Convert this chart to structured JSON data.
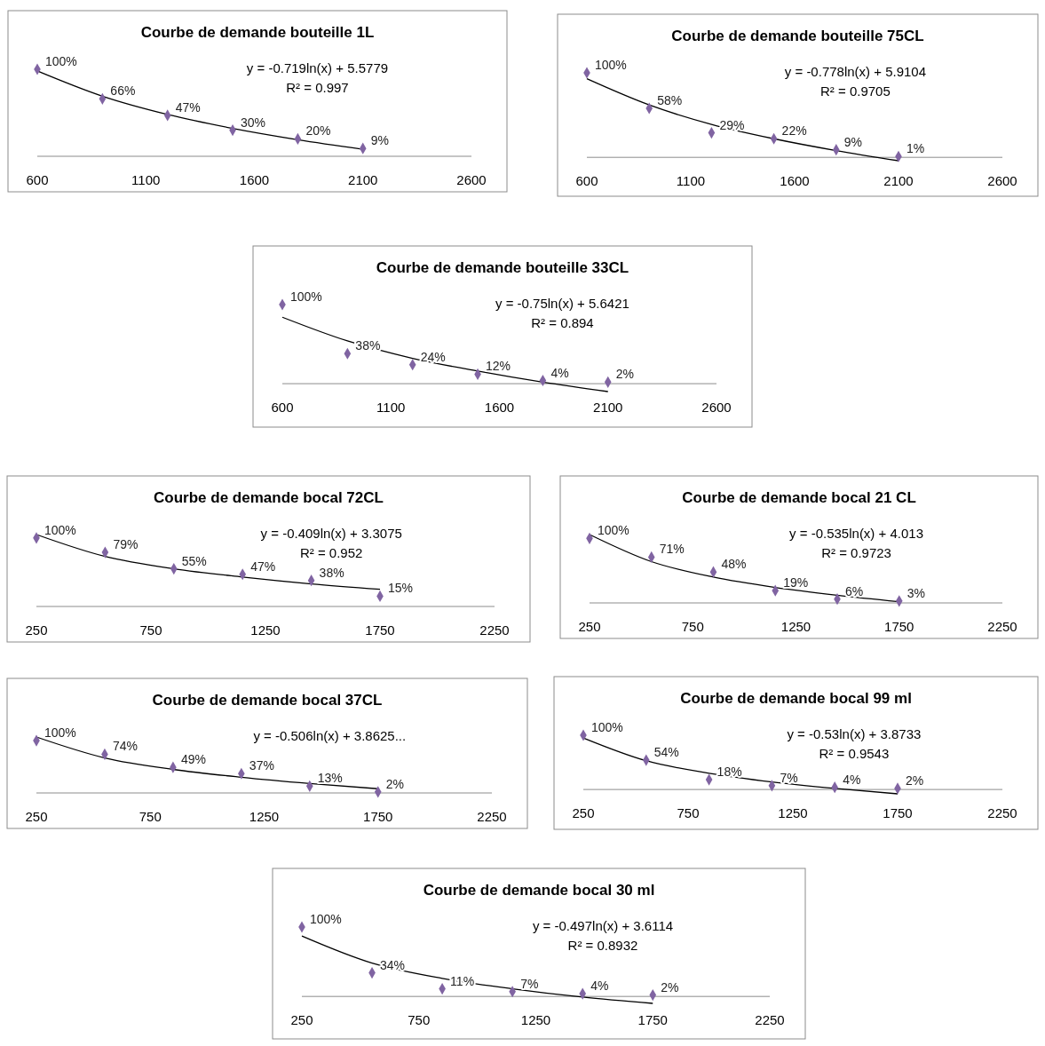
{
  "chart_data": [
    {
      "type": "scatter",
      "title": "Courbe de demande bouteille 1L",
      "x": [
        600,
        900,
        1200,
        1500,
        1800,
        2100
      ],
      "xlim": [
        600,
        2600
      ],
      "xticks": [
        600,
        1100,
        1600,
        2100,
        2600
      ],
      "tick_labels": "x",
      "annotations": [
        "y = -0.719ln(x) + 5.5779",
        "R² = 0.997"
      ],
      "series": [
        {
          "color": "#8064a2",
          "marker": "diamond",
          "values": [
            100,
            66,
            47,
            30,
            20,
            9
          ],
          "value_labels": [
            "100%",
            "66%",
            "47%",
            "30%",
            "20%",
            "9%"
          ]
        },
        {
          "type": "line",
          "color": "#000000",
          "x": [
            600,
            900,
            1200,
            1500,
            1800,
            2100
          ],
          "values": [
            98,
            69,
            48,
            32,
            19,
            8
          ]
        }
      ]
    },
    {
      "type": "scatter",
      "title": "Courbe de demande bouteille 75CL",
      "x": [
        600,
        900,
        1200,
        1500,
        1800,
        2100
      ],
      "xlim": [
        600,
        2600
      ],
      "xticks": [
        600,
        1100,
        1600,
        2100,
        2600
      ],
      "tick_labels": "x",
      "annotations": [
        "y = -0.778ln(x) + 5.9104",
        "R² = 0.9705"
      ],
      "series": [
        {
          "color": "#8064a2",
          "marker": "diamond",
          "values": [
            100,
            58,
            29,
            22,
            9,
            1
          ],
          "value_labels": [
            "100%",
            "58%",
            "29%",
            "22%",
            "9%",
            "1%"
          ]
        },
        {
          "type": "line",
          "color": "#000000",
          "x": [
            600,
            900,
            1200,
            1500,
            1800,
            2100
          ],
          "values": [
            93,
            62,
            39,
            22,
            8,
            -4
          ]
        }
      ]
    },
    {
      "type": "scatter",
      "title": "Courbe de demande bouteille 33CL",
      "x": [
        600,
        900,
        1200,
        1500,
        1800,
        2100
      ],
      "xlim": [
        600,
        2600
      ],
      "xticks": [
        600,
        1100,
        1600,
        2100,
        2600
      ],
      "tick_labels": "x",
      "annotations": [
        "y = -0.75ln(x) + 5.6421",
        "R² = 0.894"
      ],
      "series": [
        {
          "color": "#8064a2",
          "marker": "diamond",
          "values": [
            100,
            38,
            24,
            12,
            4,
            2
          ],
          "value_labels": [
            "100%",
            "38%",
            "24%",
            "12%",
            "4%",
            "2%"
          ]
        },
        {
          "type": "line",
          "color": "#000000",
          "x": [
            600,
            900,
            1200,
            1500,
            1800,
            2100
          ],
          "values": [
            84,
            54,
            32,
            16,
            2,
            -10
          ]
        }
      ]
    },
    {
      "type": "scatter",
      "title": "Courbe de demande bocal 72CL",
      "x": [
        250,
        550,
        850,
        1150,
        1450,
        1750
      ],
      "xlim": [
        250,
        2250
      ],
      "xticks": [
        250,
        750,
        1250,
        1750,
        2250
      ],
      "tick_labels": "x",
      "annotations": [
        "y = -0.409ln(x) + 3.3075",
        "R² = 0.952"
      ],
      "series": [
        {
          "color": "#8064a2",
          "marker": "diamond",
          "values": [
            100,
            79,
            55,
            47,
            38,
            15
          ],
          "value_labels": [
            "100%",
            "79%",
            "55%",
            "47%",
            "38%",
            "15%"
          ]
        },
        {
          "type": "line",
          "color": "#000000",
          "x": [
            250,
            550,
            850,
            1150,
            1450,
            1750
          ],
          "values": [
            105,
            73,
            55,
            43,
            33,
            25
          ]
        }
      ]
    },
    {
      "type": "scatter",
      "title": "Courbe de demande bocal  21 CL",
      "x": [
        250,
        550,
        850,
        1150,
        1450,
        1750
      ],
      "xlim": [
        250,
        2250
      ],
      "xticks": [
        250,
        750,
        1250,
        1750,
        2250
      ],
      "tick_labels": "x",
      "annotations": [
        "y = -0.535ln(x) + 4.013",
        "R² = 0.9723"
      ],
      "series": [
        {
          "color": "#8064a2",
          "marker": "diamond",
          "values": [
            100,
            71,
            48,
            19,
            6,
            3
          ],
          "value_labels": [
            "100%",
            "71%",
            "48%",
            "19%",
            "6%",
            "3%"
          ]
        },
        {
          "type": "line",
          "color": "#000000",
          "x": [
            250,
            550,
            850,
            1150,
            1450,
            1750
          ],
          "values": [
            106,
            64,
            40,
            24,
            12,
            2
          ]
        }
      ]
    },
    {
      "type": "scatter",
      "title": "Courbe de demande bocal  37CL",
      "x": [
        250,
        550,
        850,
        1150,
        1450,
        1750
      ],
      "xlim": [
        250,
        2250
      ],
      "xticks": [
        250,
        750,
        1250,
        1750,
        2250
      ],
      "tick_labels": "x",
      "annotations": [
        "y = -0.506ln(x) + 3.8625..."
      ],
      "series": [
        {
          "color": "#8064a2",
          "marker": "diamond",
          "values": [
            100,
            74,
            49,
            37,
            13,
            2
          ],
          "value_labels": [
            "100%",
            "74%",
            "49%",
            "37%",
            "13%",
            "2%"
          ]
        },
        {
          "type": "line",
          "color": "#000000",
          "x": [
            250,
            550,
            850,
            1150,
            1450,
            1750
          ],
          "values": [
            107,
            67,
            45,
            30,
            18,
            8
          ]
        }
      ]
    },
    {
      "type": "scatter",
      "title": "Courbe de demande bocal 99 ml",
      "x": [
        250,
        550,
        850,
        1150,
        1450,
        1750
      ],
      "xlim": [
        250,
        2250
      ],
      "xticks": [
        250,
        750,
        1250,
        1750,
        2250
      ],
      "tick_labels": "x",
      "annotations": [
        "y = -0.53ln(x) + 3.8733",
        "R² = 0.9543"
      ],
      "series": [
        {
          "color": "#8064a2",
          "marker": "diamond",
          "values": [
            100,
            54,
            18,
            7,
            4,
            2
          ],
          "value_labels": [
            "100%",
            "54%",
            "18%",
            "7%",
            "4%",
            "2%"
          ]
        },
        {
          "type": "line",
          "color": "#000000",
          "x": [
            250,
            550,
            850,
            1150,
            1450,
            1750
          ],
          "values": [
            95,
            53,
            30,
            14,
            2,
            -8
          ]
        }
      ]
    },
    {
      "type": "scatter",
      "title": "Courbe de demande bocal  30 ml",
      "x": [
        250,
        550,
        850,
        1150,
        1450,
        1750
      ],
      "xlim": [
        250,
        2250
      ],
      "xticks": [
        250,
        750,
        1250,
        1750,
        2250
      ],
      "tick_labels": "x",
      "annotations": [
        "y = -0.497ln(x) + 3.6114",
        "R² = 0.8932"
      ],
      "series": [
        {
          "color": "#8064a2",
          "marker": "diamond",
          "values": [
            100,
            34,
            11,
            7,
            4,
            2
          ],
          "value_labels": [
            "100%",
            "34%",
            "11%",
            "7%",
            "4%",
            "2%"
          ]
        },
        {
          "type": "line",
          "color": "#000000",
          "x": [
            250,
            550,
            850,
            1150,
            1450,
            1750
          ],
          "values": [
            87,
            48,
            26,
            11,
            -1,
            -10
          ]
        }
      ]
    }
  ]
}
